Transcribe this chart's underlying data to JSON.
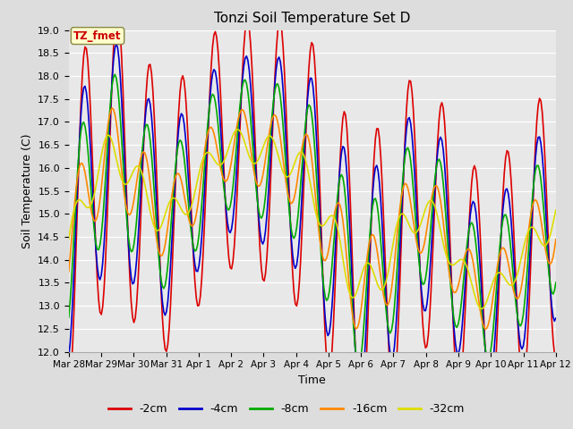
{
  "title": "Tonzi Soil Temperature Set D",
  "xlabel": "Time",
  "ylabel": "Soil Temperature (C)",
  "ylim": [
    12.0,
    19.0
  ],
  "yticks": [
    12.0,
    12.5,
    13.0,
    13.5,
    14.0,
    14.5,
    15.0,
    15.5,
    16.0,
    16.5,
    17.0,
    17.5,
    18.0,
    18.5,
    19.0
  ],
  "xtick_labels": [
    "Mar 28",
    "Mar 29",
    "Mar 30",
    "Mar 31",
    "Apr 1",
    "Apr 2",
    "Apr 3",
    "Apr 4",
    "Apr 5",
    "Apr 6",
    "Apr 7",
    "Apr 8",
    "Apr 9",
    "Apr 10",
    "Apr 11",
    "Apr 12"
  ],
  "colors": {
    "-2cm": "#dd0000",
    "-4cm": "#0000cc",
    "-8cm": "#00aa00",
    "-16cm": "#ff8800",
    "-32cm": "#dddd00"
  },
  "legend_label": "TZ_fmet",
  "legend_box_facecolor": "#ffffcc",
  "legend_text_color": "#cc0000",
  "fig_facecolor": "#dddddd",
  "ax_facecolor": "#e8e8e8",
  "grid_color": "#ffffff",
  "line_width": 1.2,
  "num_points": 360
}
